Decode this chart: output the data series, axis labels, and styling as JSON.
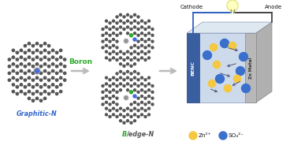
{
  "graphitic_n_label": "Graphitic-N",
  "boron_label": "Boron",
  "bedge_n_label_b": "B",
  "bedge_n_label_rest": "/edge-N",
  "cathode_label": "Cathode",
  "anode_label": "Anode",
  "benc_label": "BENC",
  "zn_metal_label": "Zn Metal",
  "zn_ion_label": "Zn²⁺",
  "so4_label": "SO₄²⁻",
  "carbon_color": "#555555",
  "nitrogen_color": "#4169E1",
  "boron_color": "#2daa2d",
  "graphitic_n_text_color": "#3366cc",
  "bedge_n_b_color": "#2daa2d",
  "bedge_n_rest_color": "#555555",
  "boron_text_color": "#2daa2d",
  "arrow_color": "#bbbbbb",
  "battery_face_color": "#ccdaec",
  "battery_top_color": "#dde8f0",
  "battery_right_color": "#b0b0b0",
  "battery_left_panel_color": "#3a5fa0",
  "battery_right_panel_color": "#b8b8b8",
  "wire_left_color": "#3060c0",
  "wire_right_color": "#444444",
  "zn_ion_color": "#f5c842",
  "so4_ion_color": "#3a6fcc",
  "bg_color": "#ffffff",
  "bond_color": "#888888",
  "gray_atom_color": "#999999",
  "pore_atom_color": "#888888"
}
